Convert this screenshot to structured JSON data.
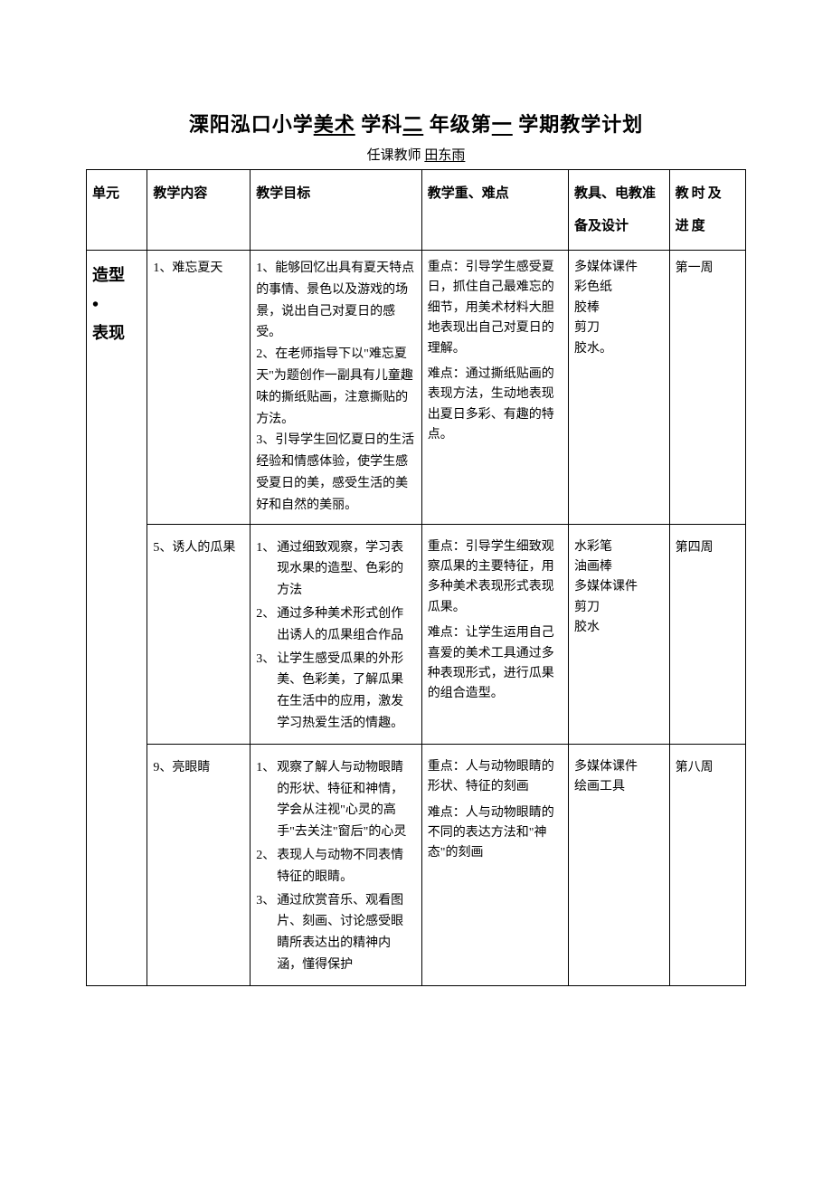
{
  "title": {
    "prefix": "溧阳泓口小学",
    "subject": "美术",
    "mid1": " 学科",
    "grade": "二",
    "mid2": " 年级第",
    "semester": "一",
    "suffix": " 学期教学计划"
  },
  "subtitle": {
    "label": "任课教师",
    "teacher": "田东雨"
  },
  "headers": {
    "unit": "单元",
    "content": "教学内容",
    "goal": "教学目标",
    "focus": "教学重、难点",
    "tools": "教具、电教准备及设计",
    "schedule": "教时及进度"
  },
  "unit": {
    "line1": "造型",
    "dot": "•",
    "line2": "表现"
  },
  "rows": [
    {
      "content": "1、难忘夏天",
      "goals": [
        {
          "n": "1、",
          "t": "能够回忆出具有夏天特点的事情、景色以及游戏的场景，说出自己对夏日的感受。"
        },
        {
          "n": "2、",
          "t": "在老师指导下以\"难忘夏天\"为题创作一副具有儿童趣味的撕纸贴画，注意撕贴的方法。"
        },
        {
          "n": "3、",
          "t": "引导学生回忆夏日的生活经验和情感体验，使学生感受夏日的美，感受生活的美好和自然的美丽。"
        }
      ],
      "focus": [
        "重点：引导学生感受夏日，抓住自己最难忘的细节，用美术材料大胆地表现出自己对夏日的理解。",
        "难点：通过撕纸贴画的表现方法，生动地表现出夏日多彩、有趣的特点。"
      ],
      "tools": [
        "多媒体课件",
        "彩色纸",
        "胶棒",
        "剪刀",
        "胶水。"
      ],
      "schedule": "第一周"
    },
    {
      "content": "5、诱人的瓜果",
      "goals": [
        {
          "n": "1、",
          "t": "通过细致观察，学习表现水果的造型、色彩的方法"
        },
        {
          "n": "2、",
          "t": "通过多种美术形式创作出诱人的瓜果组合作品"
        },
        {
          "n": "3、",
          "t": "让学生感受瓜果的外形美、色彩美，了解瓜果在生活中的应用，激发学习热爱生活的情趣。"
        }
      ],
      "focus": [
        "重点：引导学生细致观察瓜果的主要特征，用多种美术表现形式表现瓜果。",
        "难点：让学生运用自己喜爱的美术工具通过多种表现形式，进行瓜果的组合造型。"
      ],
      "tools": [
        "水彩笔",
        "油画棒",
        "多媒体课件",
        "剪刀",
        "胶水"
      ],
      "schedule": "第四周"
    },
    {
      "content": "9、亮眼睛",
      "goals": [
        {
          "n": "1、",
          "t": "观察了解人与动物眼睛的形状、特征和神情，学会从注视\"心灵的高手\"去关注\"窗后\"的心灵"
        },
        {
          "n": "2、",
          "t": "表现人与动物不同表情特征的眼睛。"
        },
        {
          "n": "3、",
          "t": "通过欣赏音乐、观看图片、刻画、讨论感受眼睛所表达出的精神内涵，懂得保护"
        }
      ],
      "focus": [
        "重点：人与动物眼睛的形状、特征的刻画",
        "难点：人与动物眼睛的不同的表达方法和\"神态\"的刻画"
      ],
      "tools": [
        "多媒体课件",
        "绘画工具"
      ],
      "schedule": "第八周"
    }
  ]
}
